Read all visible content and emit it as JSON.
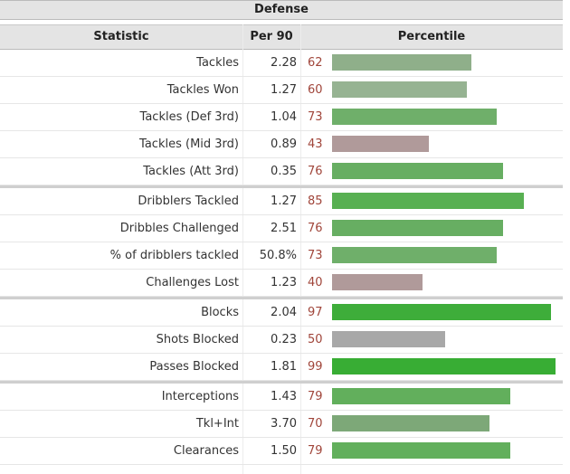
{
  "header": {
    "title": "Defense",
    "col_statistic": "Statistic",
    "col_per90": "Per 90",
    "col_percentile": "Percentile"
  },
  "chart_data": {
    "type": "table",
    "title": "Defense",
    "columns": [
      "Statistic",
      "Per 90",
      "Percentile"
    ],
    "percentile_range": [
      0,
      100
    ],
    "rows": [
      {
        "stat": "Tackles",
        "per90": "2.28",
        "percentile": 62,
        "color": "#8faf8a",
        "group_start": false
      },
      {
        "stat": "Tackles Won",
        "per90": "1.27",
        "percentile": 60,
        "color": "#96b392",
        "group_start": false
      },
      {
        "stat": "Tackles (Def 3rd)",
        "per90": "1.04",
        "percentile": 73,
        "color": "#6faf6a",
        "group_start": false
      },
      {
        "stat": "Tackles (Mid 3rd)",
        "per90": "0.89",
        "percentile": 43,
        "color": "#b09a9a",
        "group_start": false
      },
      {
        "stat": "Tackles (Att 3rd)",
        "per90": "0.35",
        "percentile": 76,
        "color": "#67ae62",
        "group_start": false
      },
      {
        "stat": "Dribblers Tackled",
        "per90": "1.27",
        "percentile": 85,
        "color": "#58b052",
        "group_start": true
      },
      {
        "stat": "Dribbles Challenged",
        "per90": "2.51",
        "percentile": 76,
        "color": "#67ae62",
        "group_start": false
      },
      {
        "stat": "% of dribblers tackled",
        "per90": "50.8%",
        "percentile": 73,
        "color": "#6faf6a",
        "group_start": false
      },
      {
        "stat": "Challenges Lost",
        "per90": "1.23",
        "percentile": 40,
        "color": "#b09a9a",
        "group_start": false
      },
      {
        "stat": "Blocks",
        "per90": "2.04",
        "percentile": 97,
        "color": "#3ead3a",
        "group_start": true
      },
      {
        "stat": "Shots Blocked",
        "per90": "0.23",
        "percentile": 50,
        "color": "#a8a8a8",
        "group_start": false
      },
      {
        "stat": "Passes Blocked",
        "per90": "1.81",
        "percentile": 99,
        "color": "#38ad34",
        "group_start": false
      },
      {
        "stat": "Interceptions",
        "per90": "1.43",
        "percentile": 79,
        "color": "#62af5c",
        "group_start": true
      },
      {
        "stat": "Tkl+Int",
        "per90": "3.70",
        "percentile": 70,
        "color": "#7da878",
        "group_start": false
      },
      {
        "stat": "Clearances",
        "per90": "1.50",
        "percentile": 79,
        "color": "#62af5c",
        "group_start": false
      }
    ]
  }
}
